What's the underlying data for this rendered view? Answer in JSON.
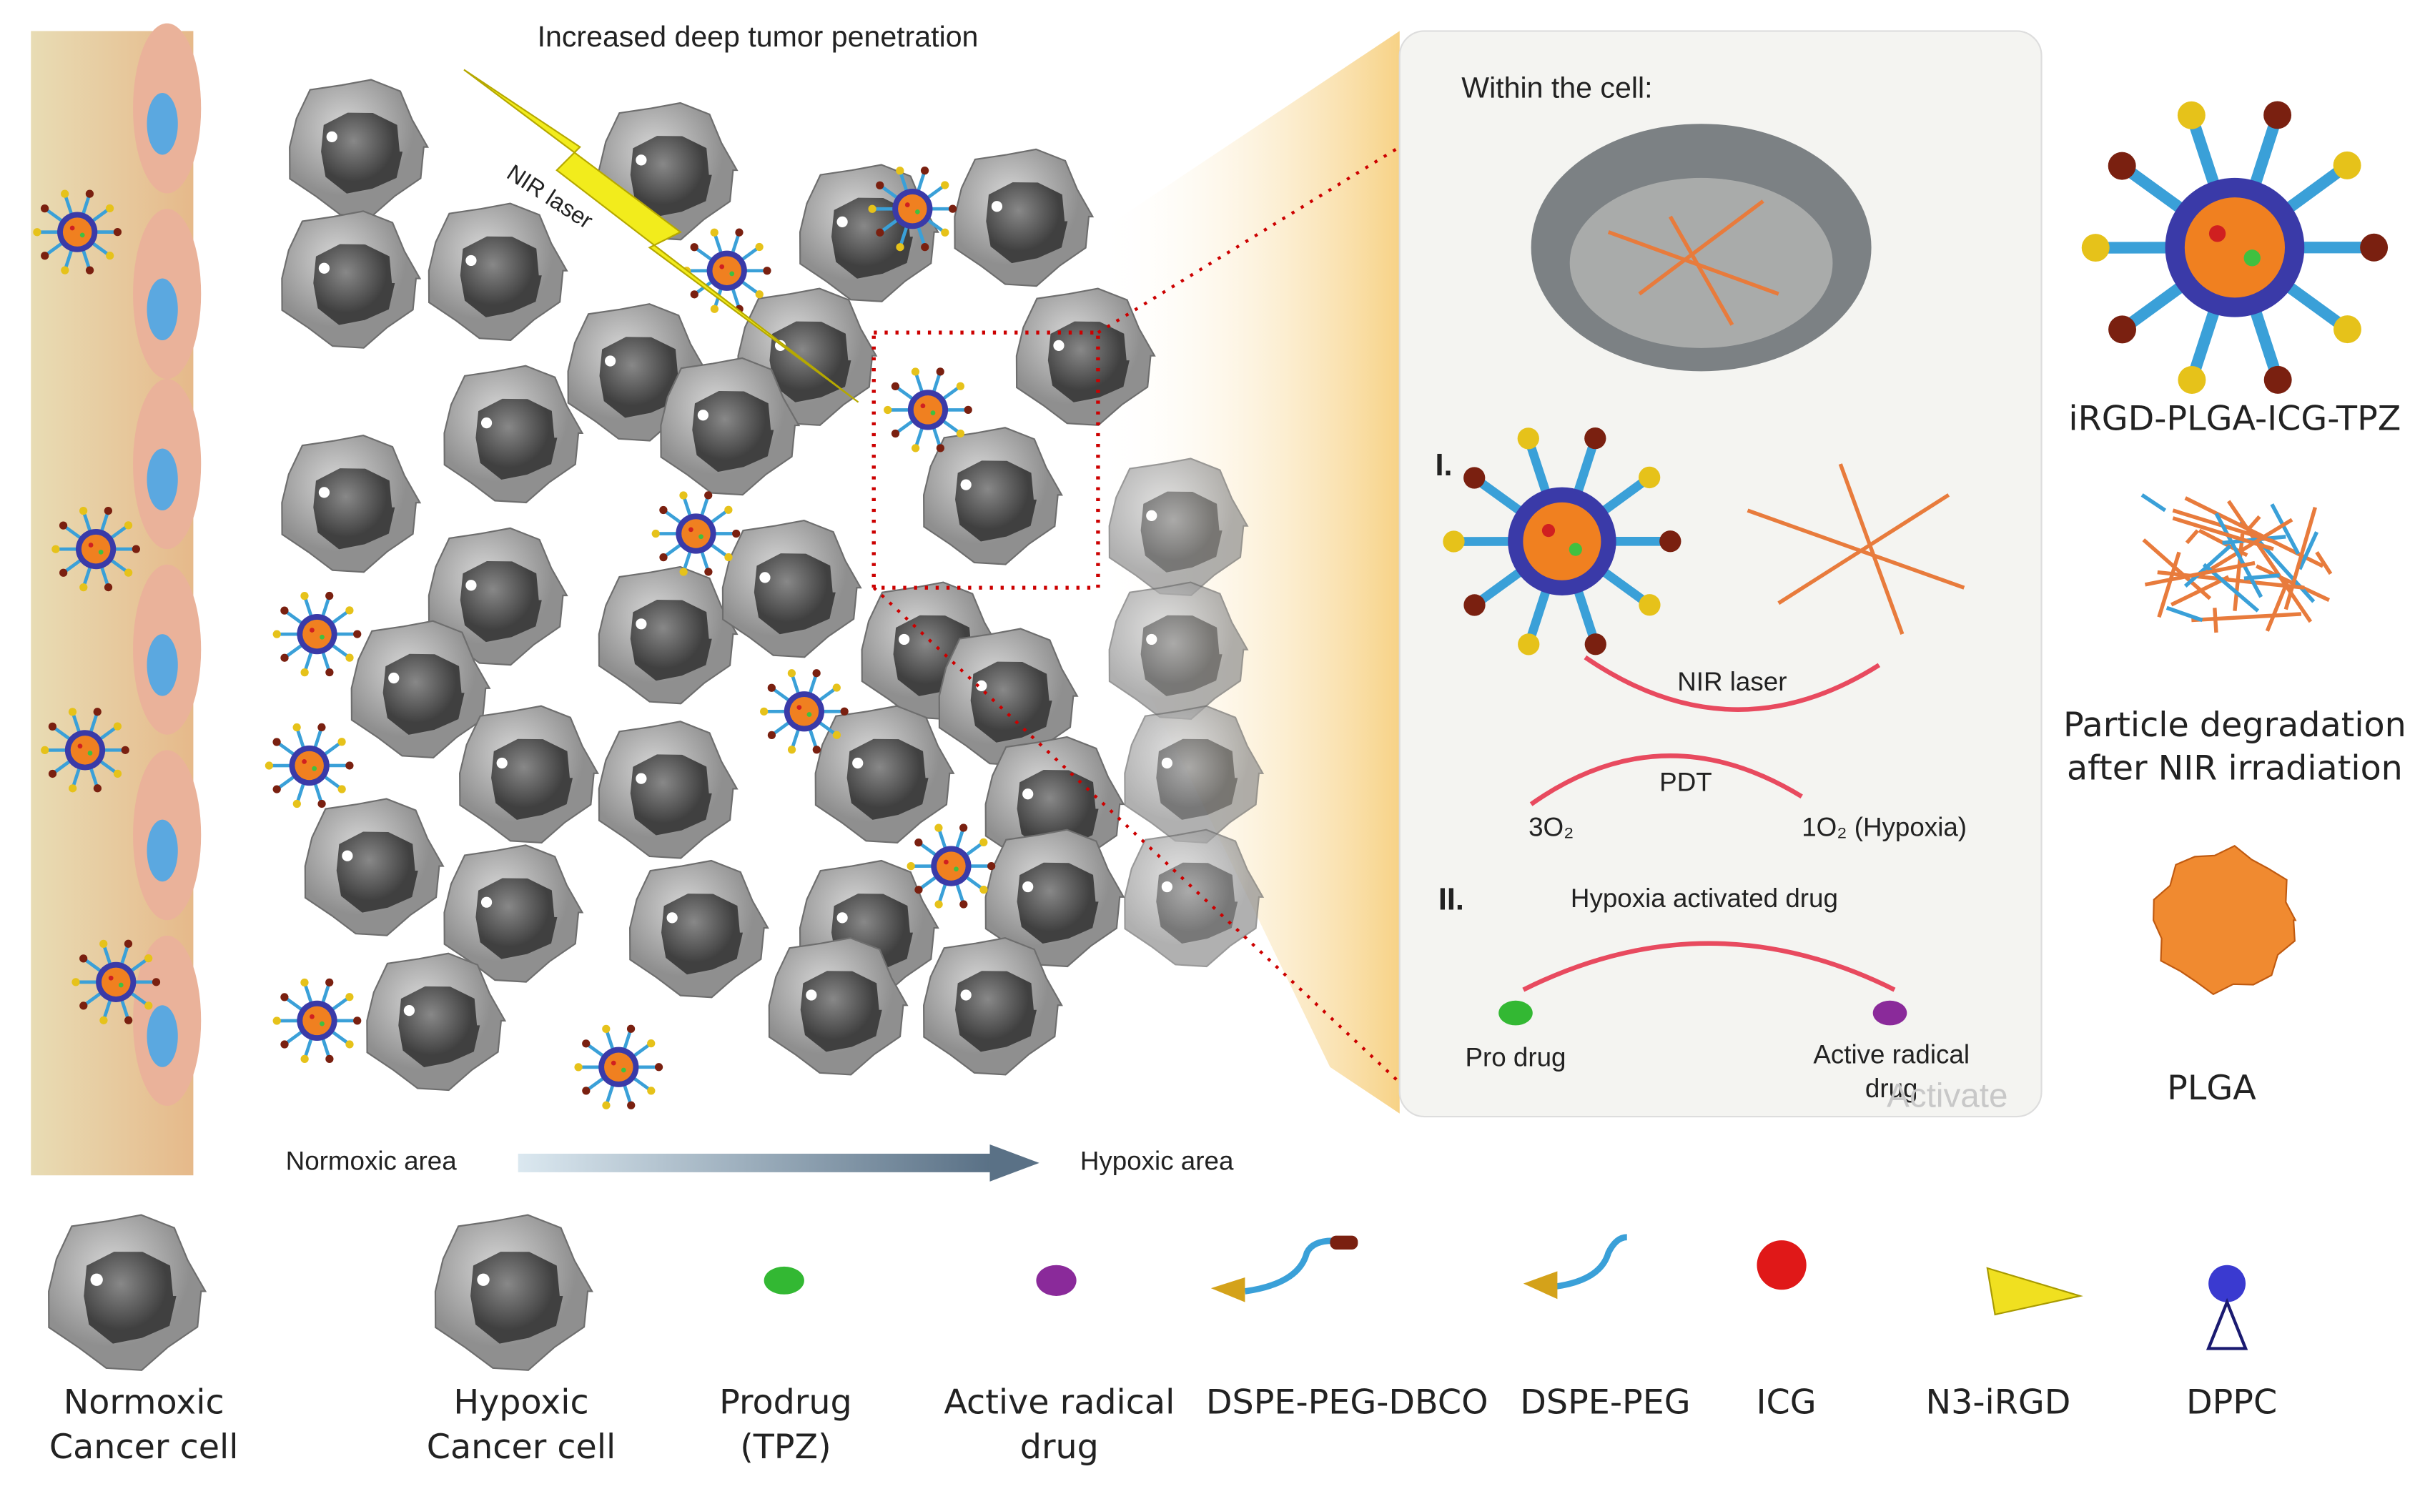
{
  "header": {
    "title": "Increased deep tumor penetration",
    "beam_label": "NIR laser"
  },
  "gradient": {
    "start": "Normoxic area",
    "end": "Hypoxic area"
  },
  "panel": {
    "title": "Within the cell:",
    "step1": {
      "label": "I.",
      "arrow": "NIR laser"
    },
    "pdt": {
      "arrow": "PDT",
      "from": "3O₂",
      "to": "1O₂  (Hypoxia)"
    },
    "step2": {
      "label": "II.",
      "arrow": "Hypoxia activated drug",
      "from": "Pro drug",
      "to": [
        "Active radical",
        "drug"
      ]
    },
    "watermark": "Activate"
  },
  "side": {
    "particle": "iRGD-PLGA-ICG-TPZ",
    "degradation": [
      "Particle degradation",
      "after NIR irradiation"
    ],
    "core": "PLGA"
  },
  "legend": [
    [
      "Normoxic",
      "Cancer cell"
    ],
    [
      "Hypoxic",
      "Cancer cell"
    ],
    [
      "Prodrug",
      "(TPZ)"
    ],
    [
      "Active radical",
      "drug"
    ],
    [
      "DSPE-PEG-DBCO"
    ],
    [
      "DSPE-PEG"
    ],
    [
      "ICG"
    ],
    [
      "N3-iRGD"
    ],
    [
      "DPPC"
    ]
  ]
}
